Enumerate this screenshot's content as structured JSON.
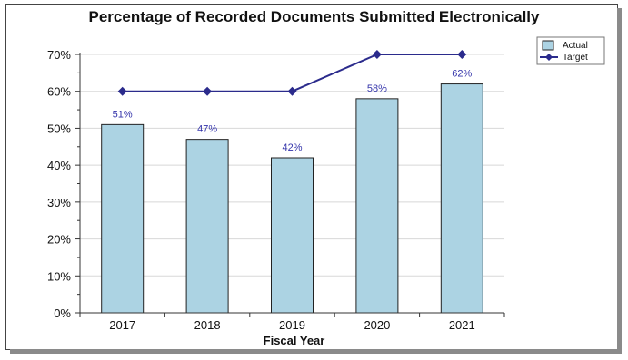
{
  "chart_data": {
    "type": "bar",
    "title": "Percentage of Recorded Documents Submitted Electronically",
    "xlabel": "Fiscal Year",
    "ylabel": "",
    "categories": [
      "2017",
      "2018",
      "2019",
      "2020",
      "2021"
    ],
    "ylim": [
      0,
      70
    ],
    "yticks": [
      "0%",
      "10%",
      "20%",
      "30%",
      "40%",
      "50%",
      "60%",
      "70%"
    ],
    "grid": true,
    "legend_position": "top-right",
    "series": [
      {
        "name": "Actual",
        "kind": "bar",
        "values": [
          51,
          47,
          42,
          58,
          62
        ],
        "data_labels": [
          "51%",
          "47%",
          "42%",
          "58%",
          "62%"
        ],
        "color": "#acd3e3"
      },
      {
        "name": "Target",
        "kind": "line",
        "values": [
          60,
          60,
          60,
          70,
          70
        ],
        "color": "#2b2b8c"
      }
    ],
    "label_color": "#3333aa"
  }
}
